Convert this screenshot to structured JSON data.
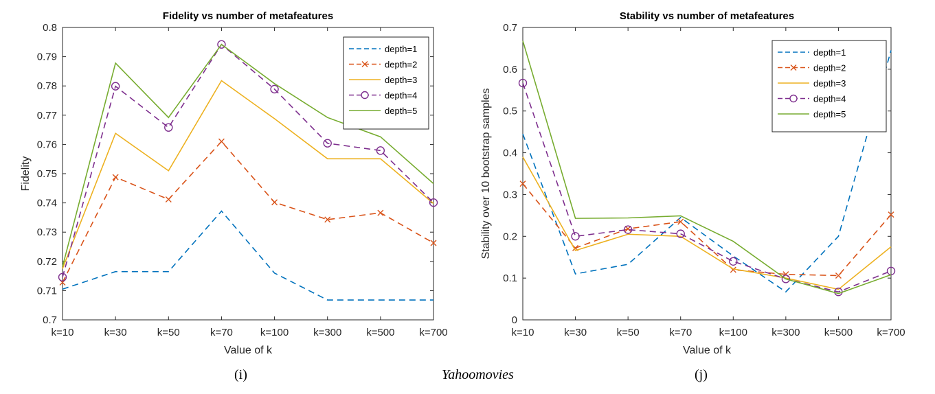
{
  "caption": {
    "left_label": "(i)",
    "dataset": "Yahoomovies",
    "right_label": "(j)"
  },
  "series_styles": [
    {
      "name": "depth=1",
      "color": "#0072BD",
      "dash": "dashed",
      "marker": "none"
    },
    {
      "name": "depth=2",
      "color": "#D95319",
      "dash": "dashed",
      "marker": "x"
    },
    {
      "name": "depth=3",
      "color": "#EDB120",
      "dash": "solid",
      "marker": "none"
    },
    {
      "name": "depth=4",
      "color": "#7E2F8E",
      "dash": "dashed",
      "marker": "circle"
    },
    {
      "name": "depth=5",
      "color": "#77AC30",
      "dash": "solid",
      "marker": "none"
    }
  ],
  "chart_data": [
    {
      "type": "line",
      "title": "Fidelity vs number of metafeatures",
      "xlabel": "Value of k",
      "ylabel": "Fidelity",
      "categories": [
        "k=10",
        "k=30",
        "k=50",
        "k=70",
        "k=100",
        "k=300",
        "k=500",
        "k=700"
      ],
      "ylim": [
        0.7,
        0.8
      ],
      "yticks": [
        "0.7",
        "0.71",
        "0.72",
        "0.73",
        "0.74",
        "0.75",
        "0.76",
        "0.77",
        "0.78",
        "0.79",
        "0.8"
      ],
      "legend_position": "top-right",
      "series": [
        {
          "name": "depth=1",
          "values": [
            0.7105,
            0.7165,
            0.7165,
            0.7372,
            0.716,
            0.7068,
            0.7068,
            0.7068
          ]
        },
        {
          "name": "depth=2",
          "values": [
            0.7128,
            0.7488,
            0.7412,
            0.761,
            0.7402,
            0.7343,
            0.7366,
            0.7263
          ]
        },
        {
          "name": "depth=3",
          "values": [
            0.7175,
            0.7638,
            0.751,
            0.7818,
            0.7688,
            0.7551,
            0.7551,
            0.7398
          ]
        },
        {
          "name": "depth=4",
          "values": [
            0.7146,
            0.7799,
            0.7658,
            0.7942,
            0.7789,
            0.7604,
            0.7579,
            0.7401
          ]
        },
        {
          "name": "depth=5",
          "values": [
            0.7182,
            0.7878,
            0.7692,
            0.7942,
            0.7808,
            0.7692,
            0.7626,
            0.7466
          ]
        }
      ]
    },
    {
      "type": "line",
      "title": "Stability vs number of metafeatures",
      "xlabel": "Value of k",
      "ylabel": "Stability over 10 bootstrap samples",
      "categories": [
        "k=10",
        "k=30",
        "k=50",
        "k=70",
        "k=100",
        "k=300",
        "k=500",
        "k=700"
      ],
      "ylim": [
        0,
        0.7
      ],
      "yticks": [
        "0",
        "0.1",
        "0.2",
        "0.3",
        "0.4",
        "0.5",
        "0.6",
        "0.7"
      ],
      "legend_position": "top-right",
      "series": [
        {
          "name": "depth=1",
          "values": [
            0.445,
            0.11,
            0.133,
            0.245,
            0.153,
            0.067,
            0.2,
            0.645
          ]
        },
        {
          "name": "depth=2",
          "values": [
            0.326,
            0.172,
            0.218,
            0.235,
            0.12,
            0.109,
            0.106,
            0.252
          ]
        },
        {
          "name": "depth=3",
          "values": [
            0.39,
            0.166,
            0.205,
            0.2,
            0.122,
            0.1,
            0.073,
            0.175
          ]
        },
        {
          "name": "depth=4",
          "values": [
            0.567,
            0.2,
            0.216,
            0.206,
            0.14,
            0.098,
            0.067,
            0.117
          ]
        },
        {
          "name": "depth=5",
          "values": [
            0.668,
            0.243,
            0.244,
            0.249,
            0.188,
            0.098,
            0.063,
            0.108
          ]
        }
      ]
    }
  ]
}
